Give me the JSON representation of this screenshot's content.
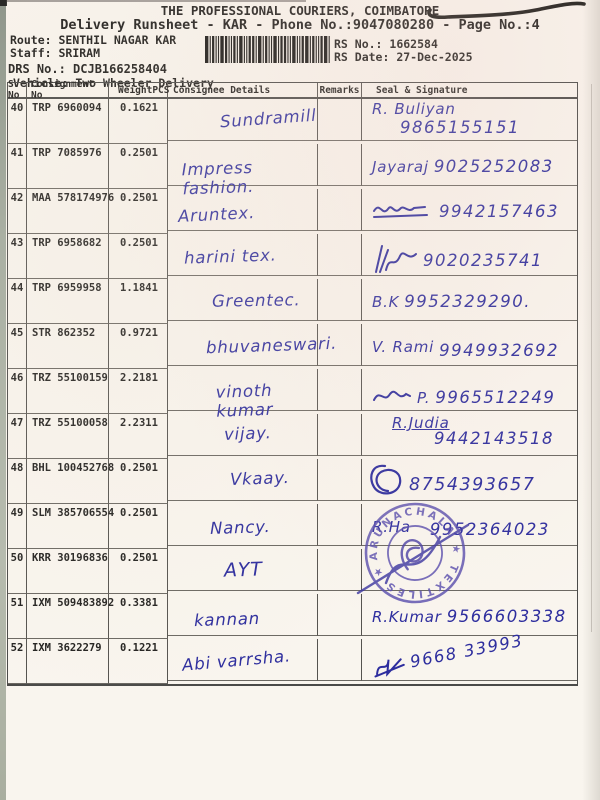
{
  "header": {
    "title": "THE PROFESSIONAL COURIERS, COIMBATORE",
    "subtitle": "Delivery Runsheet - KAR - Phone No.:9047080280 - Page No.:4",
    "route_label": "Route:",
    "route": "SENTHIL NAGAR KAR",
    "staff_label": "Staff:",
    "staff": "SRIRAM",
    "drs_label": "DRS No.:",
    "drs": "DCJB166258404",
    "vehicle_label": "Vehicle:",
    "vehicle": "Two Wheeler Delivery",
    "rs_no_label": "RS No.:",
    "rs_no": "1662584",
    "rs_date_label": "RS Date:",
    "rs_date": "27-Dec-2025"
  },
  "colors": {
    "ink_blue": "#2d2d9e",
    "stamp_purple": "#5a4fae",
    "print_black": "#1e1d1b"
  },
  "table": {
    "columns": [
      "S No",
      "Consignment No",
      "Weight",
      "PCS",
      "Consignee Details",
      "Remarks",
      "Seal & Signature"
    ],
    "rows": [
      {
        "sno": "40",
        "consignment": "TRP 6960094",
        "weight": "0.162",
        "pcs": "1",
        "consignee": "Sundramill",
        "remarks": "",
        "sign_name": "R. Buliyan",
        "sign_phone": "9865155151",
        "sign_mark": "none"
      },
      {
        "sno": "41",
        "consignment": "TRP 7085976",
        "weight": "0.250",
        "pcs": "1",
        "consignee": "Impress fashion.",
        "remarks": "",
        "sign_name": "Jayaraj",
        "sign_phone": "9025252083",
        "sign_mark": "none"
      },
      {
        "sno": "42",
        "consignment": "MAA 578174976",
        "weight": "0.250",
        "pcs": "1",
        "consignee": "Aruntex.",
        "remarks": "",
        "sign_name": "",
        "sign_phone": "9942157463",
        "sign_mark": "loops"
      },
      {
        "sno": "43",
        "consignment": "TRP 6958682",
        "weight": "0.250",
        "pcs": "1",
        "consignee": "harini tex.",
        "remarks": "",
        "sign_name": "",
        "sign_phone": "9020235741",
        "sign_mark": "strokes"
      },
      {
        "sno": "44",
        "consignment": "TRP 6959958",
        "weight": "1.184",
        "pcs": "1",
        "consignee": "Greentec.",
        "remarks": "",
        "sign_name": "B.K",
        "sign_phone": "9952329290.",
        "sign_mark": "none"
      },
      {
        "sno": "45",
        "consignment": "STR 862352",
        "weight": "0.972",
        "pcs": "1",
        "consignee": "bhuvaneswari.",
        "remarks": "",
        "sign_name": "V. Rami",
        "sign_phone": "9949932692",
        "sign_mark": "none"
      },
      {
        "sno": "46",
        "consignment": "TRZ 55100159",
        "weight": "2.218",
        "pcs": "1",
        "consignee": "vinoth kumar",
        "remarks": "",
        "sign_name": "P.",
        "sign_phone": "9965512249",
        "sign_mark": "small"
      },
      {
        "sno": "47",
        "consignment": "TRZ 55100058",
        "weight": "2.231",
        "pcs": "1",
        "consignee": "vijay.",
        "remarks": "",
        "sign_name": "R.Judia",
        "sign_phone": "9442143518",
        "sign_mark": "none"
      },
      {
        "sno": "48",
        "consignment": "BHL 100452768",
        "weight": "0.250",
        "pcs": "1",
        "consignee": "Vkaay.",
        "remarks": "",
        "sign_name": "",
        "sign_phone": "8754393657",
        "sign_mark": "circle"
      },
      {
        "sno": "49",
        "consignment": "SLM 385706554",
        "weight": "0.250",
        "pcs": "1",
        "consignee": "Nancy.",
        "remarks": "",
        "sign_name": "R.Ha",
        "sign_phone": "9952364023",
        "sign_mark": "none"
      },
      {
        "sno": "50",
        "consignment": "KRR 30196836",
        "weight": "0.250",
        "pcs": "1",
        "consignee": "AYT",
        "remarks": "",
        "sign_name": "",
        "sign_phone": "",
        "sign_mark": "stamp"
      },
      {
        "sno": "51",
        "consignment": "IXM 509483892",
        "weight": "0.338",
        "pcs": "1",
        "consignee": "kannan",
        "remarks": "",
        "sign_name": "R.Kumar",
        "sign_phone": "9566603338",
        "sign_mark": "none"
      },
      {
        "sno": "52",
        "consignment": "IXM 3622279",
        "weight": "0.122",
        "pcs": "1",
        "consignee": "Abi varrsha.",
        "remarks": "",
        "sign_name": "",
        "sign_phone": "9668 33993",
        "sign_mark": "flick"
      }
    ]
  },
  "stamp": {
    "text": "ARUNACHALA ★ TEXTILES ★"
  }
}
